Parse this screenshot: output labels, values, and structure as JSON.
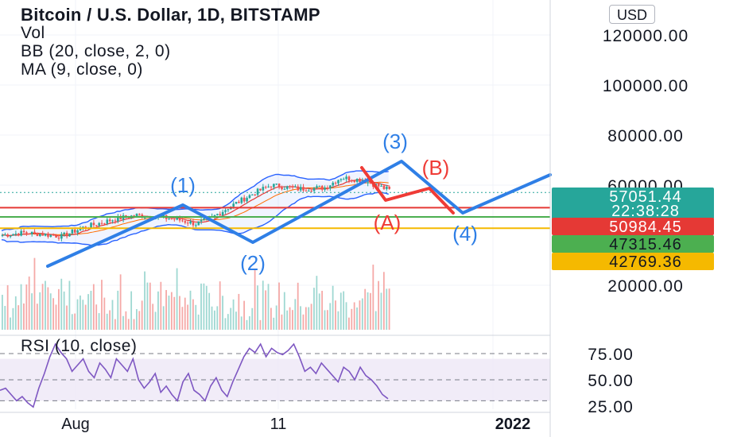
{
  "header": {
    "title": "Bitcoin / U.S. Dollar, 1D, BITSTAMP",
    "indicators": [
      "Vol",
      "BB (20, close, 2, 0)",
      "MA (9, close, 0)"
    ]
  },
  "currency_button": "USD",
  "colors": {
    "price_up": "#26a69a",
    "price_down": "#ef5350",
    "bollinger": "#2962ff",
    "elliott_impulse": "#2f7fe6",
    "elliott_correction": "#ef3b36",
    "resistance_line": "#e53935",
    "support_green": "#4caf50",
    "support_yellow": "#f5b900",
    "current_price": "#26a69a",
    "rsi": "#7e57c2"
  },
  "chart_data": {
    "type": "candlestick",
    "symbol": "BTC/USD",
    "interval": "1D",
    "x_ticks": [
      "Aug",
      "11",
      "2022"
    ],
    "y_ticks": [
      "120000.00",
      "100000.00",
      "80000.00",
      "60000.00",
      "20000.00"
    ],
    "y_axis_labels": {
      "current_price": "57051.44",
      "countdown": "22:38:28",
      "resistance": "50984.45",
      "support_1": "47315.46",
      "support_2": "42769.36"
    },
    "horizontal_levels": [
      {
        "value": 57051.44,
        "style": "dotted",
        "color": "current_price"
      },
      {
        "value": 50984.45,
        "style": "solid",
        "color": "resistance_line"
      },
      {
        "value": 47315.46,
        "style": "solid",
        "color": "support_green"
      },
      {
        "value": 42769.36,
        "style": "solid",
        "color": "support_yellow"
      }
    ],
    "elliott_labels": [
      "(1)",
      "(2)",
      "(3)",
      "(4)",
      "(A)",
      "(B)"
    ],
    "rsi": {
      "title": "RSI (10, close)",
      "y_ticks": [
        "75.00",
        "50.00",
        "25.00"
      ],
      "band": [
        30,
        70
      ],
      "values": [
        40,
        42,
        36,
        30,
        34,
        28,
        24,
        42,
        56,
        72,
        84,
        76,
        70,
        58,
        64,
        70,
        58,
        52,
        66,
        60,
        52,
        70,
        64,
        58,
        70,
        50,
        42,
        48,
        56,
        38,
        44,
        36,
        30,
        48,
        56,
        40,
        36,
        30,
        44,
        52,
        40,
        34,
        48,
        60,
        72,
        80,
        76,
        84,
        72,
        80,
        76,
        74,
        78,
        84,
        72,
        58,
        62,
        56,
        66,
        60,
        54,
        48,
        62,
        58,
        50,
        62,
        54,
        50,
        44,
        36,
        32
      ]
    }
  }
}
